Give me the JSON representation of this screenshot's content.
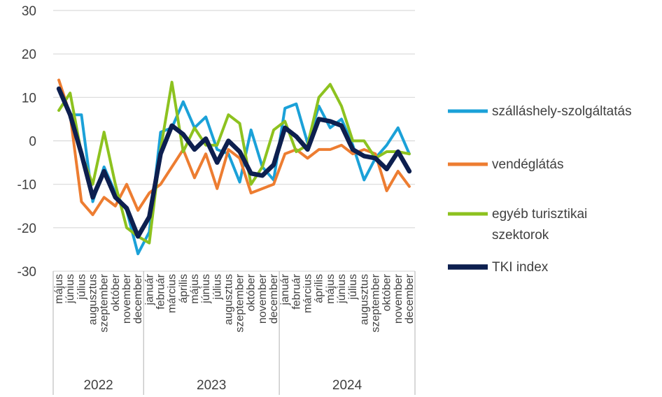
{
  "chart_data": {
    "type": "line",
    "title": "",
    "xlabel": "",
    "ylabel": "",
    "ylim": [
      -30,
      30
    ],
    "yticks": [
      30,
      20,
      10,
      0,
      -10,
      -20,
      -30
    ],
    "grid": "horizontal",
    "legend_position": "right",
    "categories": [
      "május",
      "június",
      "július",
      "augusztus",
      "szeptember",
      "október",
      "november",
      "december",
      "január",
      "február",
      "március",
      "április",
      "május",
      "június",
      "július",
      "augusztus",
      "szeptember",
      "október",
      "november",
      "december",
      "január",
      "február",
      "március",
      "április",
      "május",
      "június",
      "július",
      "augusztus",
      "szeptember",
      "október",
      "november",
      "december"
    ],
    "years": [
      {
        "label": "2022",
        "start": 0,
        "end": 7
      },
      {
        "label": "2023",
        "start": 8,
        "end": 19
      },
      {
        "label": "2024",
        "start": 20,
        "end": 31
      }
    ],
    "series": [
      {
        "name": "szálláshely-szolgáltatás",
        "color": "#1ba1d8",
        "width": 4,
        "values": [
          12,
          6,
          6,
          -14,
          -6,
          -12,
          -16,
          -26,
          -21,
          2,
          3,
          9,
          3,
          5.5,
          -2,
          -3,
          -9.5,
          2.5,
          -6,
          -9,
          7.5,
          8.5,
          -0.5,
          8,
          3,
          5,
          -1,
          -9,
          -4,
          -1,
          3,
          -3
        ]
      },
      {
        "name": "vendéglátás",
        "color": "#ed7d31",
        "width": 4,
        "values": [
          14,
          6,
          -14,
          -17,
          -13,
          -15,
          -10,
          -16,
          -12,
          -10,
          -6,
          -2,
          -8.5,
          -3,
          -11,
          -2,
          -4,
          -12,
          -11,
          -10,
          -3,
          -2,
          -4,
          -2,
          -2,
          -1,
          -3,
          -2,
          -3,
          -11.5,
          -7,
          -10.5
        ]
      },
      {
        "name": "egyéb turisztikai szektorok",
        "color": "#8dc21f",
        "width": 4,
        "values": [
          7,
          11,
          -3,
          -10,
          2,
          -10,
          -20,
          -22,
          -23.5,
          -2,
          13.5,
          -2.5,
          3,
          -1,
          -1,
          6,
          4,
          -10,
          -6,
          2.5,
          4.5,
          -2.5,
          -1,
          10,
          13,
          8,
          0,
          0,
          -4,
          -2.5,
          -2.5,
          -3
        ]
      },
      {
        "name": "TKI index",
        "color": "#0d1f4f",
        "width": 6.5,
        "values": [
          12,
          6,
          -3,
          -13,
          -7,
          -13,
          -15.5,
          -22,
          -17.5,
          -3,
          3.5,
          1.5,
          -2,
          0.5,
          -5,
          0,
          -2.5,
          -7.5,
          -8,
          -5.5,
          3,
          1,
          -2,
          5,
          4.5,
          3.5,
          -2,
          -3.5,
          -4,
          -6.5,
          -2.5,
          -7
        ]
      }
    ]
  }
}
